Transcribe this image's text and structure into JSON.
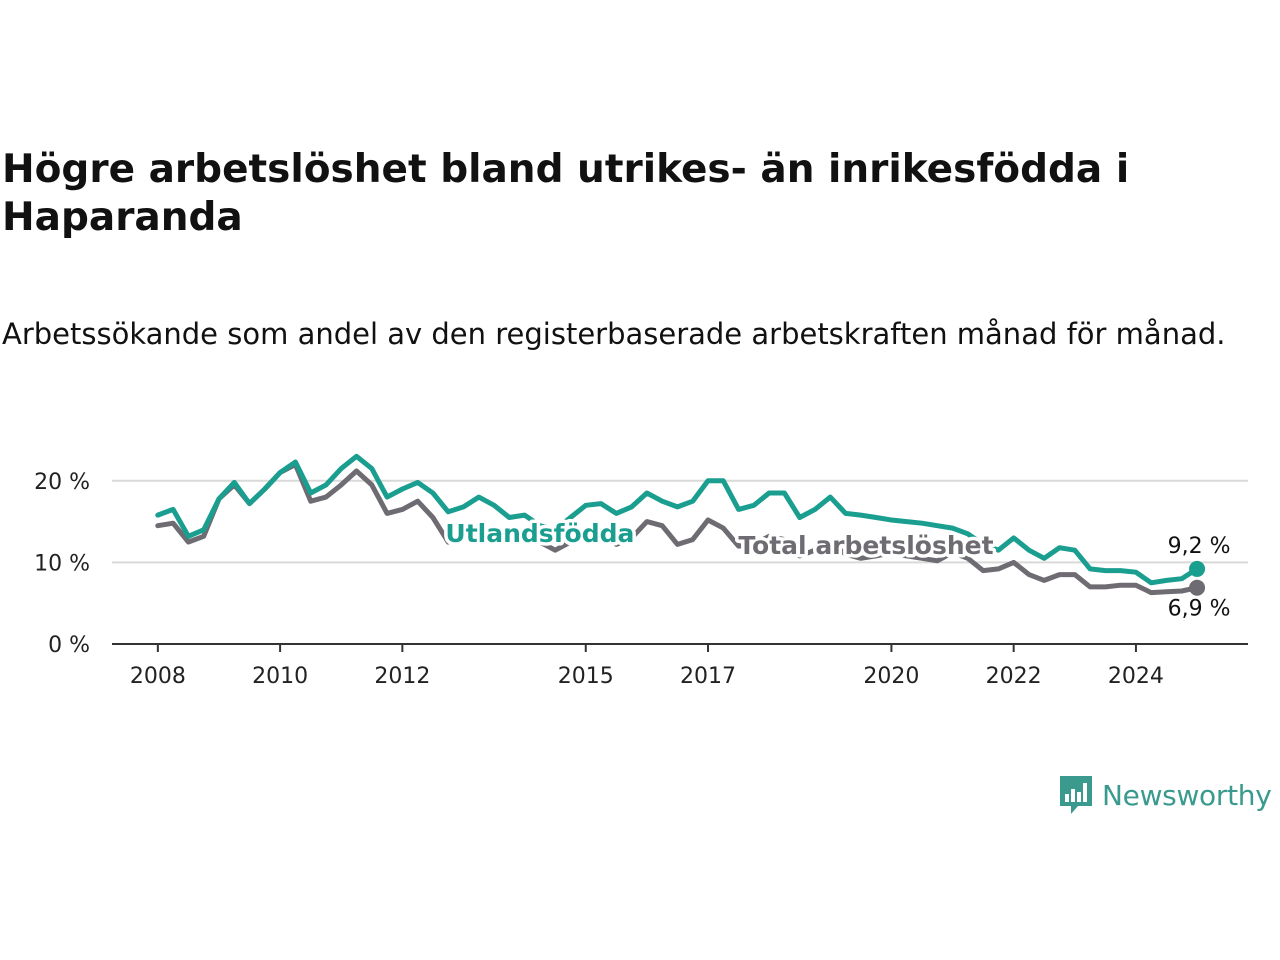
{
  "title": "Högre arbetslöshet bland utrikes- än inrikesfödda i Haparanda",
  "subtitle": "Arbetssökande som andel av den registerbaserade arbetskraften månad för månad.",
  "brand": {
    "name": "Newsworthy",
    "icon": "newsworthy-logo-icon",
    "color": "#3a9a8e"
  },
  "chart_data": {
    "type": "line",
    "ylim": [
      0,
      25
    ],
    "yticks": [
      0,
      10,
      20
    ],
    "ytick_labels": [
      "0 %",
      "10 %",
      "20 %"
    ],
    "xtick_labels": [
      "2008",
      "2010",
      "2012",
      "2015",
      "2017",
      "2020",
      "2022",
      "2024"
    ],
    "xlim": [
      "2007-04",
      "2025-11"
    ],
    "grid": "horizontal",
    "series": [
      {
        "name": "Utlandsfödda",
        "color": "#1a9e8f",
        "end_label": "9,2 %",
        "points": [
          [
            "2008-01",
            15.8
          ],
          [
            "2008-04",
            16.5
          ],
          [
            "2008-07",
            13.2
          ],
          [
            "2008-10",
            14.0
          ],
          [
            "2009-01",
            17.8
          ],
          [
            "2009-04",
            19.8
          ],
          [
            "2009-07",
            17.2
          ],
          [
            "2009-10",
            19.0
          ],
          [
            "2010-01",
            21.0
          ],
          [
            "2010-04",
            22.3
          ],
          [
            "2010-07",
            18.5
          ],
          [
            "2010-10",
            19.5
          ],
          [
            "2011-01",
            21.5
          ],
          [
            "2011-04",
            23.0
          ],
          [
            "2011-07",
            21.5
          ],
          [
            "2011-10",
            18.0
          ],
          [
            "2012-01",
            19.0
          ],
          [
            "2012-04",
            19.8
          ],
          [
            "2012-07",
            18.5
          ],
          [
            "2012-10",
            16.2
          ],
          [
            "2013-01",
            16.8
          ],
          [
            "2013-04",
            18.0
          ],
          [
            "2013-07",
            17.0
          ],
          [
            "2013-10",
            15.5
          ],
          [
            "2014-01",
            15.8
          ],
          [
            "2014-04",
            14.5
          ],
          [
            "2014-07",
            14.0
          ],
          [
            "2014-10",
            15.5
          ],
          [
            "2015-01",
            17.0
          ],
          [
            "2015-04",
            17.2
          ],
          [
            "2015-07",
            16.0
          ],
          [
            "2015-10",
            16.8
          ],
          [
            "2016-01",
            18.5
          ],
          [
            "2016-04",
            17.5
          ],
          [
            "2016-07",
            16.8
          ],
          [
            "2016-10",
            17.5
          ],
          [
            "2017-01",
            20.0
          ],
          [
            "2017-04",
            20.0
          ],
          [
            "2017-07",
            16.5
          ],
          [
            "2017-10",
            17.0
          ],
          [
            "2018-01",
            18.5
          ],
          [
            "2018-04",
            18.5
          ],
          [
            "2018-07",
            15.5
          ],
          [
            "2018-10",
            16.5
          ],
          [
            "2019-01",
            18.0
          ],
          [
            "2019-04",
            16.0
          ],
          [
            "2019-07",
            15.8
          ],
          [
            "2019-10",
            15.5
          ],
          [
            "2020-01",
            15.2
          ],
          [
            "2020-04",
            15.0
          ],
          [
            "2020-07",
            14.8
          ],
          [
            "2020-10",
            14.5
          ],
          [
            "2021-01",
            14.2
          ],
          [
            "2021-04",
            13.5
          ],
          [
            "2021-07",
            12.2
          ],
          [
            "2021-10",
            11.5
          ],
          [
            "2022-01",
            13.0
          ],
          [
            "2022-04",
            11.5
          ],
          [
            "2022-07",
            10.5
          ],
          [
            "2022-10",
            11.8
          ],
          [
            "2023-01",
            11.5
          ],
          [
            "2023-04",
            9.2
          ],
          [
            "2023-07",
            9.0
          ],
          [
            "2023-10",
            9.0
          ],
          [
            "2024-01",
            8.8
          ],
          [
            "2024-04",
            7.5
          ],
          [
            "2024-07",
            7.8
          ],
          [
            "2024-10",
            8.0
          ],
          [
            "2025-01",
            9.2
          ]
        ]
      },
      {
        "name": "Total arbetslöshet",
        "color": "#6e6c72",
        "end_label": "6,9 %",
        "points": [
          [
            "2008-01",
            14.5
          ],
          [
            "2008-04",
            14.8
          ],
          [
            "2008-07",
            12.5
          ],
          [
            "2008-10",
            13.2
          ],
          [
            "2009-01",
            17.8
          ],
          [
            "2009-04",
            19.5
          ],
          [
            "2009-07",
            17.2
          ],
          [
            "2009-10",
            19.0
          ],
          [
            "2010-01",
            21.0
          ],
          [
            "2010-04",
            22.0
          ],
          [
            "2010-07",
            17.5
          ],
          [
            "2010-10",
            18.0
          ],
          [
            "2011-01",
            19.5
          ],
          [
            "2011-04",
            21.2
          ],
          [
            "2011-07",
            19.5
          ],
          [
            "2011-10",
            16.0
          ],
          [
            "2012-01",
            16.5
          ],
          [
            "2012-04",
            17.5
          ],
          [
            "2012-07",
            15.5
          ],
          [
            "2012-10",
            12.5
          ],
          [
            "2013-01",
            13.5
          ],
          [
            "2013-04",
            14.5
          ],
          [
            "2013-07",
            13.5
          ],
          [
            "2013-10",
            12.5
          ],
          [
            "2014-01",
            13.5
          ],
          [
            "2014-04",
            12.5
          ],
          [
            "2014-07",
            11.5
          ],
          [
            "2014-10",
            12.5
          ],
          [
            "2015-01",
            13.5
          ],
          [
            "2015-04",
            13.8
          ],
          [
            "2015-07",
            12.2
          ],
          [
            "2015-10",
            13.0
          ],
          [
            "2016-01",
            15.0
          ],
          [
            "2016-04",
            14.5
          ],
          [
            "2016-07",
            12.2
          ],
          [
            "2016-10",
            12.8
          ],
          [
            "2017-01",
            15.2
          ],
          [
            "2017-04",
            14.2
          ],
          [
            "2017-07",
            12.0
          ],
          [
            "2017-10",
            12.2
          ],
          [
            "2018-01",
            13.2
          ],
          [
            "2018-04",
            12.8
          ],
          [
            "2018-07",
            10.8
          ],
          [
            "2018-10",
            11.5
          ],
          [
            "2019-01",
            12.5
          ],
          [
            "2019-04",
            11.0
          ],
          [
            "2019-07",
            10.5
          ],
          [
            "2019-10",
            10.8
          ],
          [
            "2020-01",
            11.2
          ],
          [
            "2020-04",
            10.8
          ],
          [
            "2020-07",
            10.5
          ],
          [
            "2020-10",
            10.2
          ],
          [
            "2021-01",
            11.2
          ],
          [
            "2021-04",
            10.5
          ],
          [
            "2021-07",
            9.0
          ],
          [
            "2021-10",
            9.2
          ],
          [
            "2022-01",
            10.0
          ],
          [
            "2022-04",
            8.5
          ],
          [
            "2022-07",
            7.8
          ],
          [
            "2022-10",
            8.5
          ],
          [
            "2023-01",
            8.5
          ],
          [
            "2023-04",
            7.0
          ],
          [
            "2023-07",
            7.0
          ],
          [
            "2023-10",
            7.2
          ],
          [
            "2024-01",
            7.2
          ],
          [
            "2024-04",
            6.3
          ],
          [
            "2024-07",
            6.4
          ],
          [
            "2024-10",
            6.5
          ],
          [
            "2025-01",
            6.9
          ]
        ]
      }
    ]
  }
}
